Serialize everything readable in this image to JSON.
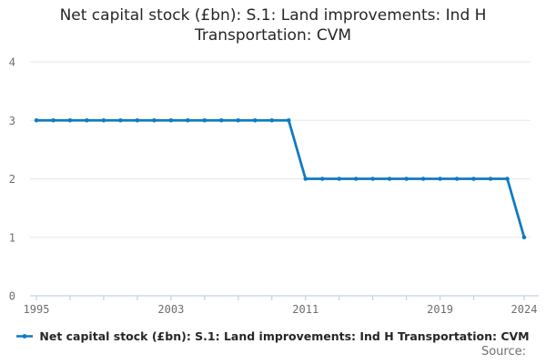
{
  "title": "Net capital stock (£bn): S.1: Land improvements: Ind H Transportation: CVM",
  "legend": {
    "label": "Net capital stock (£bn): S.1: Land improvements: Ind H Transportation: CVM"
  },
  "source_label": "Source:",
  "colors": {
    "series": "#0F7AC3",
    "gridline": "#E7E7E7",
    "axis": "#C3D1E1",
    "tick_text": "#6E6E6E",
    "title_text": "#262626"
  },
  "chart_data": {
    "type": "line",
    "title": "Net capital stock (£bn): S.1: Land improvements: Ind H Transportation: CVM",
    "xlabel": "",
    "ylabel": "",
    "grid": "horizontal",
    "legend_position": "bottom",
    "markers": true,
    "ylim": [
      0,
      4
    ],
    "yticks": [
      0,
      1,
      2,
      3,
      4
    ],
    "xtick_marks": [
      1995,
      1997,
      1999,
      2001,
      2003,
      2005,
      2007,
      2009,
      2011,
      2013,
      2015,
      2017,
      2019,
      2021,
      2024
    ],
    "xtick_labels": [
      1995,
      2003,
      2011,
      2019,
      2024
    ],
    "series": [
      {
        "name": "Net capital stock (£bn): S.1: Land improvements: Ind H Transportation: CVM",
        "x": [
          1995,
          1996,
          1997,
          1998,
          1999,
          2000,
          2001,
          2002,
          2003,
          2004,
          2005,
          2006,
          2007,
          2008,
          2009,
          2010,
          2011,
          2012,
          2013,
          2014,
          2015,
          2016,
          2017,
          2018,
          2019,
          2020,
          2021,
          2022,
          2023,
          2024
        ],
        "values": [
          3,
          3,
          3,
          3,
          3,
          3,
          3,
          3,
          3,
          3,
          3,
          3,
          3,
          3,
          3,
          3,
          2,
          2,
          2,
          2,
          2,
          2,
          2,
          2,
          2,
          2,
          2,
          2,
          2,
          1
        ]
      }
    ]
  }
}
